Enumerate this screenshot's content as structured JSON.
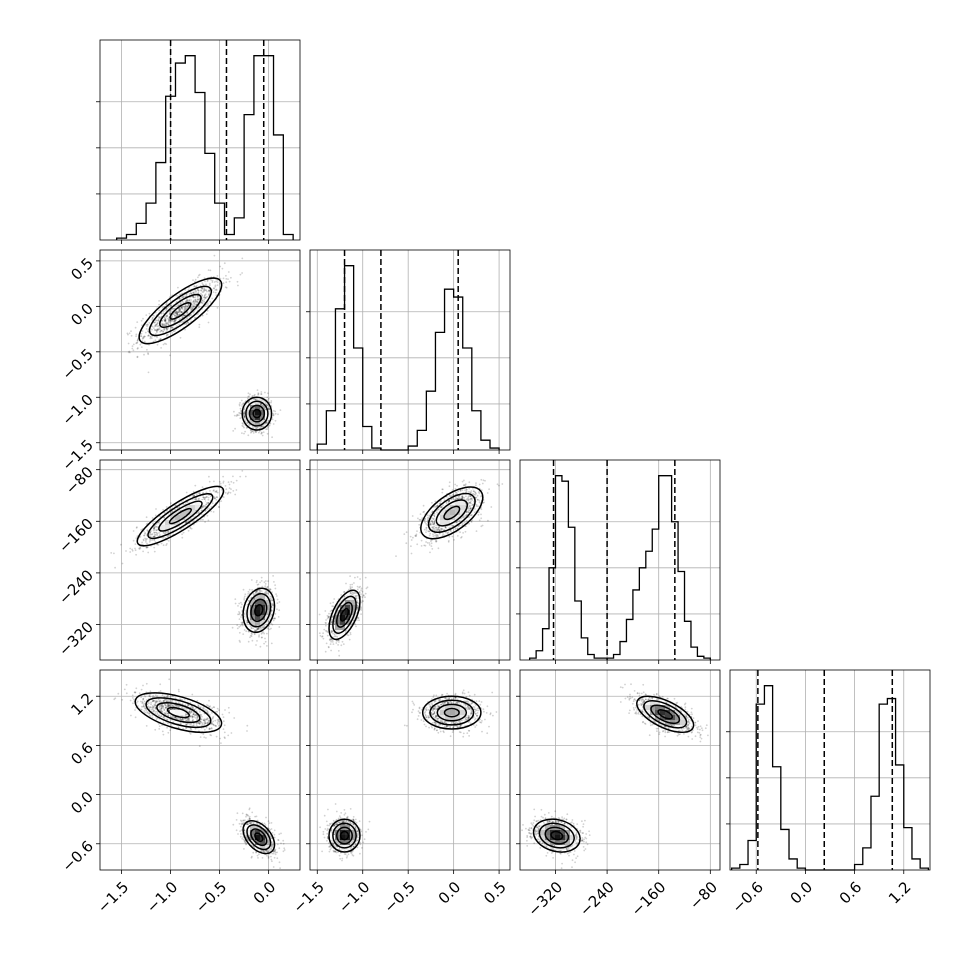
{
  "chart_data": {
    "type": "corner",
    "grid": true,
    "parameters": [
      {
        "ticks": [
          -1.5,
          -1.0,
          -0.5,
          0.0
        ],
        "tick_labels": [
          "−1.5",
          "−1.0",
          "−0.5",
          "0.0"
        ],
        "range": [
          -1.72,
          0.32
        ]
      },
      {
        "ticks": [
          -1.5,
          -1.0,
          -0.5,
          0.0,
          0.5
        ],
        "tick_labels": [
          "−1.5",
          "−1.0",
          "−0.5",
          "0.0",
          "0.5"
        ],
        "range": [
          -1.58,
          0.62
        ]
      },
      {
        "ticks": [
          -320,
          -240,
          -160,
          -80
        ],
        "tick_labels": [
          "−320",
          "−240",
          "−160",
          "−80"
        ],
        "range": [
          -375,
          -65
        ]
      },
      {
        "ticks": [
          -0.6,
          0.0,
          0.6,
          1.2
        ],
        "tick_labels": [
          "−0.6",
          "0.0",
          "0.6",
          "1.2"
        ],
        "range": [
          -0.92,
          1.52
        ]
      }
    ],
    "histograms": [
      {
        "param": 0,
        "bin_edges": [
          -1.55,
          -1.45,
          -1.35,
          -1.25,
          -1.15,
          -1.05,
          -0.95,
          -0.85,
          -0.75,
          -0.65,
          -0.55,
          -0.45,
          -0.35,
          -0.25,
          -0.15,
          -0.05,
          0.05,
          0.15,
          0.25
        ],
        "counts": [
          1,
          3,
          9,
          20,
          42,
          78,
          96,
          100,
          80,
          47,
          20,
          3,
          12,
          68,
          100,
          100,
          57,
          3
        ],
        "quantiles": [
          -1.0,
          -0.43,
          -0.05
        ]
      },
      {
        "param": 1,
        "bin_edges": [
          -1.5,
          -1.4,
          -1.3,
          -1.2,
          -1.1,
          -1.0,
          -0.9,
          -0.8,
          -0.7,
          -0.6,
          -0.5,
          -0.4,
          -0.3,
          -0.2,
          -0.1,
          0.0,
          0.1,
          0.2,
          0.3,
          0.4,
          0.5
        ],
        "counts": [
          3,
          20,
          72,
          94,
          52,
          12,
          1,
          0,
          0,
          0,
          2,
          10,
          30,
          60,
          82,
          78,
          52,
          20,
          5,
          1
        ],
        "quantiles": [
          -1.2,
          -0.8,
          0.05
        ]
      },
      {
        "param": 2,
        "bin_edges": [
          -360,
          -350,
          -340,
          -330,
          -320,
          -310,
          -300,
          -290,
          -280,
          -270,
          -260,
          -250,
          -240,
          -230,
          -220,
          -210,
          -200,
          -190,
          -180,
          -170,
          -160,
          -150,
          -140,
          -130,
          -120,
          -110,
          -100,
          -90,
          -80
        ],
        "counts": [
          1,
          5,
          17,
          50,
          100,
          97,
          72,
          32,
          12,
          3,
          1,
          1,
          1,
          3,
          10,
          22,
          38,
          50,
          59,
          71,
          100,
          100,
          75,
          48,
          21,
          7,
          2,
          1
        ],
        "quantiles": [
          -323,
          -240,
          -135
        ]
      },
      {
        "param": 3,
        "bin_edges": [
          -0.9,
          -0.8,
          -0.7,
          -0.6,
          -0.5,
          -0.4,
          -0.3,
          -0.2,
          -0.1,
          0.0,
          0.1,
          0.2,
          0.3,
          0.4,
          0.5,
          0.6,
          0.7,
          0.8,
          0.9,
          1.0,
          1.1,
          1.2,
          1.3,
          1.4,
          1.5
        ],
        "counts": [
          1,
          3,
          16,
          90,
          100,
          56,
          22,
          6,
          1,
          0,
          0,
          0,
          0,
          0,
          0,
          3,
          12,
          40,
          90,
          93,
          57,
          23,
          6,
          1
        ],
        "quantiles": [
          -0.58,
          0.23,
          1.06
        ]
      }
    ],
    "pairs": [
      {
        "x_param": 0,
        "y_param": 1,
        "modes": [
          {
            "center": [
              -0.9,
              -0.05
            ],
            "sd": [
              0.21,
              0.18
            ],
            "rho": 0.8,
            "weight": 0.5
          },
          {
            "center": [
              -0.12,
              -1.18
            ],
            "sd": [
              0.075,
              0.09
            ],
            "rho": 0.0,
            "weight": 0.5
          }
        ]
      },
      {
        "x_param": 0,
        "y_param": 2,
        "modes": [
          {
            "center": [
              -0.9,
              -152
            ],
            "sd": [
              0.22,
              23
            ],
            "rho": 0.85,
            "weight": 0.5
          },
          {
            "center": [
              -0.1,
              -298
            ],
            "sd": [
              0.08,
              17
            ],
            "rho": 0.2,
            "weight": 0.5
          }
        ]
      },
      {
        "x_param": 1,
        "y_param": 2,
        "modes": [
          {
            "center": [
              -0.02,
              -147
            ],
            "sd": [
              0.17,
              20
            ],
            "rho": 0.6,
            "weight": 0.5
          },
          {
            "center": [
              -1.2,
              -305
            ],
            "sd": [
              0.085,
              19
            ],
            "rho": 0.55,
            "weight": 0.5
          }
        ]
      },
      {
        "x_param": 0,
        "y_param": 3,
        "modes": [
          {
            "center": [
              -0.92,
              1.0
            ],
            "sd": [
              0.22,
              0.12
            ],
            "rho": -0.55,
            "weight": 0.5
          },
          {
            "center": [
              -0.1,
              -0.52
            ],
            "sd": [
              0.08,
              0.1
            ],
            "rho": -0.45,
            "weight": 0.5
          }
        ]
      },
      {
        "x_param": 1,
        "y_param": 3,
        "modes": [
          {
            "center": [
              -0.02,
              1.0
            ],
            "sd": [
              0.16,
              0.1
            ],
            "rho": 0.0,
            "weight": 0.5
          },
          {
            "center": [
              -1.2,
              -0.5
            ],
            "sd": [
              0.085,
              0.1
            ],
            "rho": 0.0,
            "weight": 0.5
          }
        ]
      },
      {
        "x_param": 2,
        "y_param": 3,
        "modes": [
          {
            "center": [
              -150,
              0.98
            ],
            "sd": [
              22,
              0.11
            ],
            "rho": -0.6,
            "weight": 0.5
          },
          {
            "center": [
              -318,
              -0.5
            ],
            "sd": [
              18,
              0.1
            ],
            "rho": -0.2,
            "weight": 0.5
          }
        ]
      }
    ]
  }
}
